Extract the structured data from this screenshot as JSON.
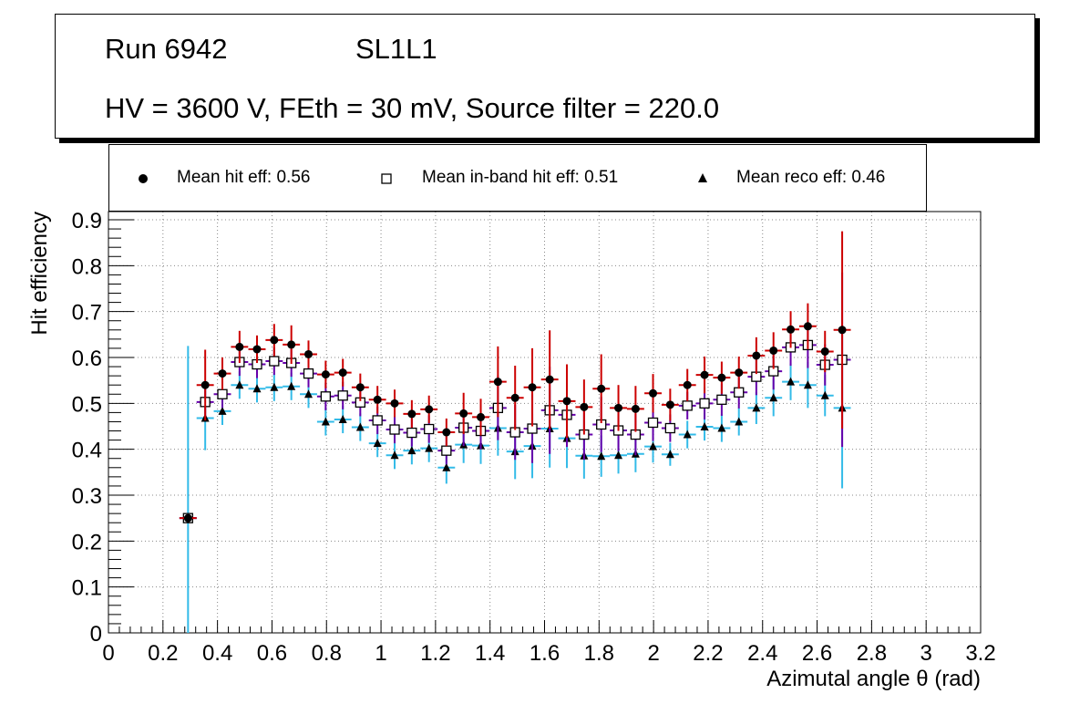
{
  "header": {
    "run_label": "Run 6942",
    "layer_label": "SL1L1",
    "conditions": "HV = 3600 V, FEth = 30 mV, Source filter = 220.0"
  },
  "legend": {
    "hit": "Mean hit  eff: 0.56",
    "inband": "Mean in-band hit eff: 0.51",
    "reco": "Mean reco eff: 0.46"
  },
  "colors": {
    "hit_error": "#cc0000",
    "inband_error": "#6600aa",
    "reco_error": "#33bbe8",
    "grid": "#888888",
    "marker": "#000000"
  },
  "chart_data": {
    "type": "scatter",
    "xlabel": "Azimutal angle θ (rad)",
    "ylabel": "Hit efficiency",
    "xlim": [
      0,
      3.2
    ],
    "ylim": [
      0,
      0.9
    ],
    "grid": true,
    "legend_position": "top",
    "x_ticks": [
      "0",
      "0.2",
      "0.4",
      "0.6",
      "0.8",
      "1",
      "1.2",
      "1.4",
      "1.6",
      "1.8",
      "2",
      "2.2",
      "2.4",
      "2.6",
      "2.8",
      "3",
      "3.2"
    ],
    "y_ticks": [
      "0",
      "0.1",
      "0.2",
      "0.3",
      "0.4",
      "0.5",
      "0.6",
      "0.7",
      "0.8",
      "0.9"
    ],
    "x_halfwidth": 0.0316,
    "x": [
      0.292,
      0.355,
      0.418,
      0.481,
      0.545,
      0.608,
      0.671,
      0.734,
      0.797,
      0.86,
      0.924,
      0.987,
      1.05,
      1.113,
      1.176,
      1.24,
      1.303,
      1.366,
      1.429,
      1.492,
      1.555,
      1.619,
      1.682,
      1.745,
      1.808,
      1.871,
      1.934,
      1.998,
      2.061,
      2.124,
      2.187,
      2.25,
      2.313,
      2.377,
      2.44,
      2.503,
      2.566,
      2.629,
      2.692
    ],
    "series": [
      {
        "name": "Mean hit  eff: 0.56",
        "marker": "circle",
        "values": [
          0.25,
          0.54,
          0.565,
          0.623,
          0.618,
          0.638,
          0.628,
          0.607,
          0.563,
          0.567,
          0.535,
          0.508,
          0.5,
          0.477,
          0.487,
          0.437,
          0.478,
          0.47,
          0.547,
          0.512,
          0.535,
          0.552,
          0.505,
          0.492,
          0.532,
          0.49,
          0.488,
          0.522,
          0.497,
          0.54,
          0.562,
          0.556,
          0.567,
          0.604,
          0.615,
          0.661,
          0.668,
          0.613,
          0.66
        ],
        "errors": [
          0.0,
          0.077,
          0.035,
          0.035,
          0.03,
          0.035,
          0.042,
          0.03,
          0.03,
          0.03,
          0.03,
          0.03,
          0.03,
          0.03,
          0.03,
          0.03,
          0.045,
          0.04,
          0.077,
          0.07,
          0.085,
          0.107,
          0.08,
          0.06,
          0.075,
          0.05,
          0.05,
          0.042,
          0.035,
          0.035,
          0.04,
          0.035,
          0.035,
          0.04,
          0.04,
          0.04,
          0.05,
          0.045,
          0.215
        ]
      },
      {
        "name": "Mean in-band hit eff: 0.51",
        "marker": "open-square",
        "values": [
          0.25,
          0.503,
          0.52,
          0.59,
          0.585,
          0.592,
          0.588,
          0.565,
          0.515,
          0.517,
          0.502,
          0.463,
          0.443,
          0.436,
          0.444,
          0.397,
          0.447,
          0.44,
          0.49,
          0.437,
          0.445,
          0.485,
          0.475,
          0.432,
          0.454,
          0.441,
          0.432,
          0.458,
          0.446,
          0.495,
          0.5,
          0.508,
          0.524,
          0.558,
          0.57,
          0.622,
          0.627,
          0.584,
          0.595
        ],
        "errors": [
          0.0,
          0.03,
          0.03,
          0.03,
          0.03,
          0.03,
          0.03,
          0.03,
          0.03,
          0.03,
          0.03,
          0.03,
          0.03,
          0.03,
          0.03,
          0.03,
          0.04,
          0.04,
          0.07,
          0.06,
          0.075,
          0.095,
          0.07,
          0.055,
          0.06,
          0.045,
          0.045,
          0.04,
          0.03,
          0.03,
          0.035,
          0.035,
          0.035,
          0.04,
          0.04,
          0.04,
          0.05,
          0.045,
          0.19
        ]
      },
      {
        "name": "Mean reco eff: 0.46",
        "marker": "triangle",
        "values": [
          0.25,
          0.468,
          0.483,
          0.54,
          0.532,
          0.535,
          0.537,
          0.52,
          0.46,
          0.465,
          0.448,
          0.413,
          0.387,
          0.397,
          0.402,
          0.36,
          0.41,
          0.408,
          0.446,
          0.395,
          0.407,
          0.445,
          0.424,
          0.386,
          0.385,
          0.387,
          0.39,
          0.406,
          0.389,
          0.432,
          0.449,
          0.446,
          0.46,
          0.49,
          0.512,
          0.547,
          0.54,
          0.517,
          0.49
        ],
        "errors": [
          0.375,
          0.07,
          0.03,
          0.03,
          0.03,
          0.03,
          0.03,
          0.03,
          0.03,
          0.03,
          0.03,
          0.03,
          0.03,
          0.03,
          0.03,
          0.035,
          0.04,
          0.04,
          0.06,
          0.06,
          0.07,
          0.085,
          0.065,
          0.05,
          0.045,
          0.04,
          0.04,
          0.035,
          0.025,
          0.03,
          0.03,
          0.03,
          0.03,
          0.035,
          0.04,
          0.04,
          0.05,
          0.045,
          0.175
        ]
      }
    ]
  }
}
